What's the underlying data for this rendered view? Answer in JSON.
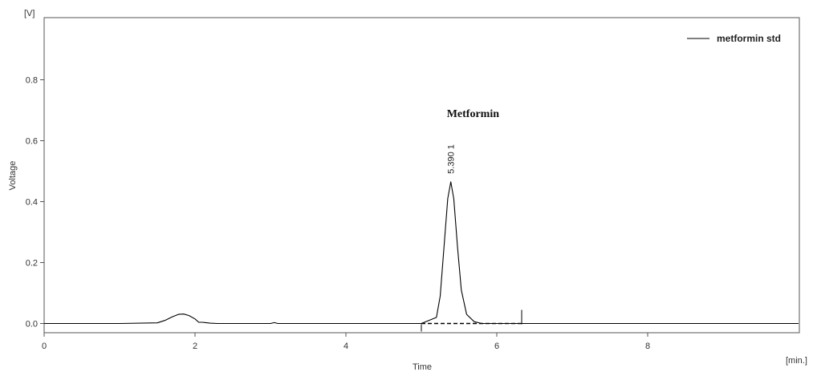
{
  "chart_data": {
    "type": "line",
    "title": "",
    "xlabel": "Time",
    "ylabel": "Voltage",
    "x_unit": "[min.]",
    "y_unit": "[V]",
    "xlim": [
      0,
      10
    ],
    "ylim": [
      -0.03,
      1.0
    ],
    "x_ticks": [
      0,
      2,
      4,
      6,
      8
    ],
    "y_ticks": [
      0.0,
      0.2,
      0.4,
      0.6,
      0.8
    ],
    "x_tick_labels": [
      "0",
      "2",
      "4",
      "6",
      "8"
    ],
    "y_tick_labels": [
      "0.0",
      "0.2",
      "0.4",
      "0.6",
      "0.8"
    ],
    "grid": false,
    "legend_position": "top-right",
    "series": [
      {
        "name": "metformin std",
        "color": "#000000",
        "x": [
          0,
          1.0,
          1.5,
          1.6,
          1.7,
          1.78,
          1.85,
          1.92,
          2.0,
          2.05,
          2.1,
          2.2,
          2.3,
          3.0,
          3.05,
          3.1,
          4.0,
          5.0,
          5.2,
          5.25,
          5.3,
          5.35,
          5.39,
          5.43,
          5.48,
          5.53,
          5.6,
          5.7,
          5.8,
          6.0,
          7.0,
          8.0,
          10.0
        ],
        "y": [
          0.0,
          0.0,
          0.002,
          0.01,
          0.022,
          0.03,
          0.031,
          0.026,
          0.015,
          0.004,
          0.004,
          0.001,
          0.0,
          0.0,
          0.003,
          0.0,
          0.0,
          0.0,
          0.02,
          0.09,
          0.25,
          0.41,
          0.465,
          0.41,
          0.25,
          0.11,
          0.03,
          0.006,
          0.0,
          0.0,
          0.0,
          0.0,
          0.0
        ]
      }
    ],
    "baseline": {
      "x": [
        5.0,
        6.33
      ],
      "style": "dashed"
    },
    "integration_marks": [
      5.0,
      6.33
    ],
    "peaks": [
      {
        "name": "Metformin",
        "retention_time": "5.390",
        "number": "1",
        "x": 5.39,
        "y": 0.465
      }
    ]
  }
}
